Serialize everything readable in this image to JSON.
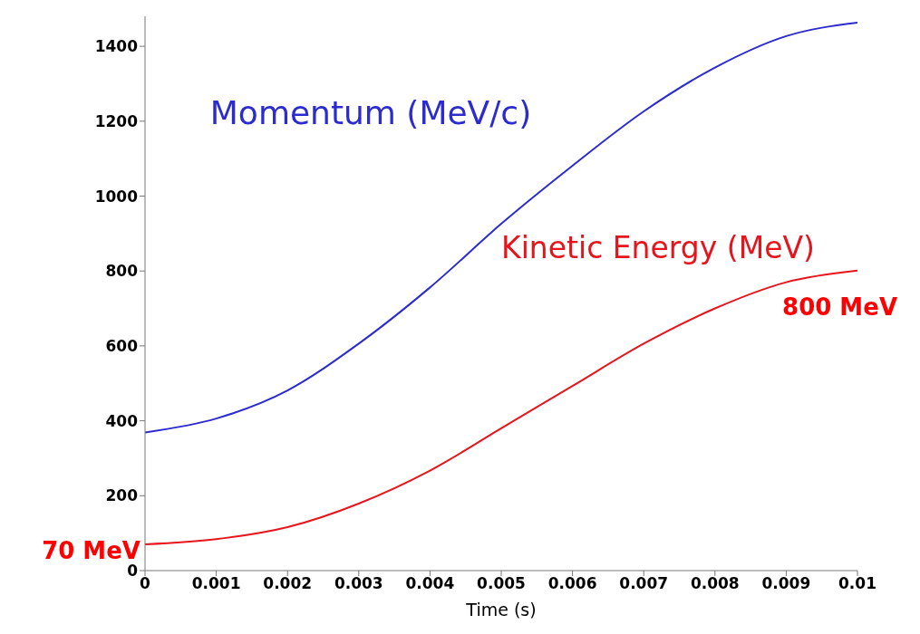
{
  "chart_data": {
    "type": "line",
    "xlabel": "Time (s)",
    "x": [
      0,
      0.001,
      0.002,
      0.003,
      0.004,
      0.005,
      0.006,
      0.007,
      0.008,
      0.009,
      0.01
    ],
    "series": [
      {
        "name": "Momentum (MeV/c)",
        "color": "#2b2bd0",
        "values": [
          369,
          406,
          481,
          606,
          756,
          926,
          1081,
          1226,
          1343,
          1427,
          1463
        ]
      },
      {
        "name": "Kinetic Energy (MeV)",
        "color": "#e8141c",
        "values": [
          70,
          84,
          116,
          179,
          267,
          380,
          493,
          606,
          700,
          770,
          801
        ]
      }
    ],
    "xlim": [
      0,
      0.01
    ],
    "xticks": [
      0,
      0.001,
      0.002,
      0.003,
      0.004,
      0.005,
      0.006,
      0.007,
      0.008,
      0.009,
      0.01
    ],
    "ylim": [
      0,
      1480
    ],
    "yticks": [
      0,
      200,
      400,
      600,
      800,
      1000,
      1200,
      1400
    ],
    "grid": false,
    "legend": false,
    "marker": "none",
    "line_style": "solid",
    "annotations": [
      {
        "text": "800 MeV",
        "x": 0.01,
        "y": 800
      },
      {
        "text": "70 MeV",
        "x": 0,
        "y": 70
      }
    ]
  }
}
